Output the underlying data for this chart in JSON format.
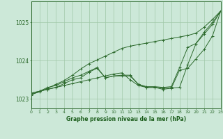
{
  "title": "Graphe pression niveau de la mer (hPa)",
  "x_hours": [
    0,
    1,
    2,
    3,
    4,
    5,
    6,
    7,
    8,
    9,
    10,
    11,
    12,
    13,
    14,
    15,
    16,
    17,
    18,
    19,
    20,
    21,
    22,
    23
  ],
  "line1": [
    1023.1,
    1023.2,
    1023.25,
    1023.3,
    1023.35,
    1023.4,
    1023.45,
    1023.5,
    1023.55,
    1023.6,
    1023.65,
    1023.68,
    1023.5,
    1023.35,
    1023.3,
    1023.3,
    1023.25,
    1023.28,
    1023.3,
    1023.9,
    1024.45,
    1024.75,
    1025.0,
    1025.3
  ],
  "line2": [
    1023.15,
    1023.2,
    1023.25,
    1023.3,
    1023.4,
    1023.5,
    1023.55,
    1023.7,
    1023.8,
    1023.55,
    1023.6,
    1023.6,
    1023.6,
    1023.38,
    1023.3,
    1023.3,
    1023.28,
    1023.28,
    1023.75,
    1023.8,
    1024.05,
    1024.3,
    1024.65,
    1025.3
  ],
  "line3": [
    1023.15,
    1023.2,
    1023.3,
    1023.35,
    1023.45,
    1023.55,
    1023.62,
    1023.72,
    1023.82,
    1023.55,
    1023.6,
    1023.62,
    1023.62,
    1023.38,
    1023.32,
    1023.32,
    1023.3,
    1023.32,
    1023.82,
    1024.35,
    1024.45,
    1024.7,
    1024.95,
    1025.3
  ],
  "line4": [
    1023.12,
    1023.18,
    1023.28,
    1023.38,
    1023.48,
    1023.62,
    1023.78,
    1023.92,
    1024.02,
    1024.12,
    1024.22,
    1024.32,
    1024.38,
    1024.42,
    1024.46,
    1024.5,
    1024.54,
    1024.58,
    1024.62,
    1024.66,
    1024.72,
    1024.88,
    1025.08,
    1025.3
  ],
  "bg_color": "#cce8d8",
  "line_color": "#2d6a2d",
  "grid_color": "#a0c8a8",
  "tick_color": "#2d6a2d",
  "title_color": "#1a5c1a",
  "ylim": [
    1022.75,
    1025.55
  ],
  "yticks": [
    1023,
    1024,
    1025
  ],
  "ytick_labels": [
    "1023",
    "1024",
    "1025"
  ],
  "xlim": [
    0,
    23
  ],
  "xtick_fontsize": 4.5,
  "ytick_fontsize": 5.5,
  "title_fontsize": 5.5,
  "figwidth": 3.2,
  "figheight": 2.0,
  "dpi": 100
}
